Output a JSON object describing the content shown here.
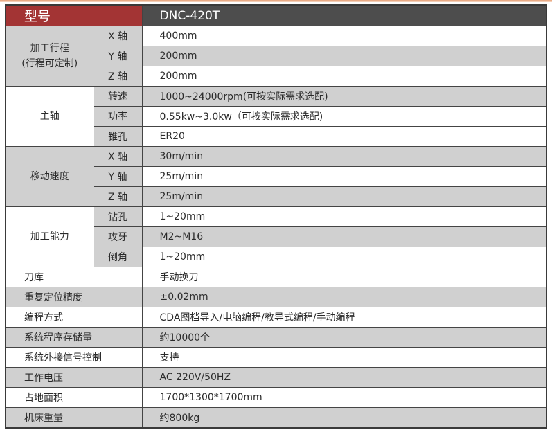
{
  "header": {
    "label": "型号",
    "model": "DNC-420T"
  },
  "groups": [
    {
      "label": "加工行程",
      "label2": "(行程可定制)",
      "shade": true,
      "rows": [
        {
          "sub": "X 轴",
          "value": "400mm",
          "shade": false
        },
        {
          "sub": "Y 轴",
          "value": "200mm",
          "shade": true
        },
        {
          "sub": "Z 轴",
          "value": "200mm",
          "shade": false
        }
      ]
    },
    {
      "label": "主轴",
      "shade": false,
      "rows": [
        {
          "sub": "转速",
          "value": "1000~24000rpm(可按实际需求选配)",
          "shade": true
        },
        {
          "sub": "功率",
          "value": "0.55kw~3.0kw（可按实际需求选配)",
          "shade": false
        },
        {
          "sub": "锥孔",
          "value": "ER20",
          "shade": false
        }
      ]
    },
    {
      "label": "移动速度",
      "shade": true,
      "rows": [
        {
          "sub": "X 轴",
          "value": "30m/min",
          "shade": true
        },
        {
          "sub": "Y 轴",
          "value": "25m/min",
          "shade": false
        },
        {
          "sub": "Z 轴",
          "value": "25m/min",
          "shade": true
        }
      ]
    },
    {
      "label": "加工能力",
      "shade": false,
      "rows": [
        {
          "sub": "钻孔",
          "value": "1~20mm",
          "shade": false
        },
        {
          "sub": "攻牙",
          "value": "M2~M16",
          "shade": true
        },
        {
          "sub": "倒角",
          "value": "1~20mm",
          "shade": false
        }
      ]
    }
  ],
  "rows": [
    {
      "label": "刀库",
      "value": "手动换刀",
      "shade": false
    },
    {
      "label": "重复定位精度",
      "value": "±0.02mm",
      "shade": true
    },
    {
      "label": "编程方式",
      "value": "CDA图档导入/电脑编程/教导式编程/手动编程",
      "shade": false
    },
    {
      "label": "系统程序存储量",
      "value": "约10000个",
      "shade": true
    },
    {
      "label": "系统外接信号控制",
      "value": "支持",
      "shade": false
    },
    {
      "label": "工作电压",
      "value": "AC 220V/50HZ",
      "shade": true
    },
    {
      "label": "占地面积",
      "value": "1700*1300*1700mm",
      "shade": false
    },
    {
      "label": "机床重量",
      "value": "约800kg",
      "shade": true
    }
  ],
  "colors": {
    "header_left": "#a33434",
    "header_right": "#4d4d4d",
    "shade": "#d0d0d0"
  }
}
